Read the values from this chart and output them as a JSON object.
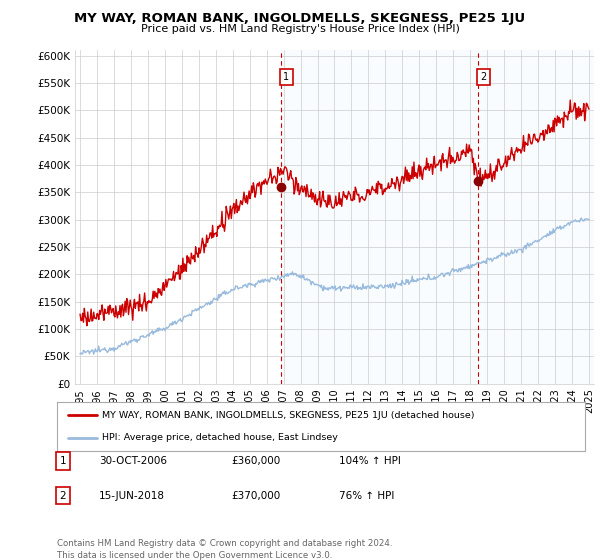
{
  "title": "MY WAY, ROMAN BANK, INGOLDMELLS, SKEGNESS, PE25 1JU",
  "subtitle": "Price paid vs. HM Land Registry's House Price Index (HPI)",
  "ylabel_ticks": [
    "£0",
    "£50K",
    "£100K",
    "£150K",
    "£200K",
    "£250K",
    "£300K",
    "£350K",
    "£400K",
    "£450K",
    "£500K",
    "£550K",
    "£600K"
  ],
  "ytick_values": [
    0,
    50000,
    100000,
    150000,
    200000,
    250000,
    300000,
    350000,
    400000,
    450000,
    500000,
    550000,
    600000
  ],
  "ylim": [
    0,
    610000
  ],
  "xlim_start": 1994.7,
  "xlim_end": 2025.3,
  "red_line_color": "#cc0000",
  "blue_line_color": "#99bbdd",
  "shade_color": "#ddeeff",
  "marker1_x": 2006.83,
  "marker1_y": 360000,
  "marker2_x": 2018.46,
  "marker2_y": 370000,
  "marker1_label": "1",
  "marker2_label": "2",
  "marker1_date": "30-OCT-2006",
  "marker1_price": "£360,000",
  "marker1_hpi": "104% ↑ HPI",
  "marker2_date": "15-JUN-2018",
  "marker2_price": "£370,000",
  "marker2_hpi": "76% ↑ HPI",
  "legend_line1": "MY WAY, ROMAN BANK, INGOLDMELLS, SKEGNESS, PE25 1JU (detached house)",
  "legend_line2": "HPI: Average price, detached house, East Lindsey",
  "footer": "Contains HM Land Registry data © Crown copyright and database right 2024.\nThis data is licensed under the Open Government Licence v3.0.",
  "background_color": "#ffffff",
  "grid_color": "#cccccc"
}
